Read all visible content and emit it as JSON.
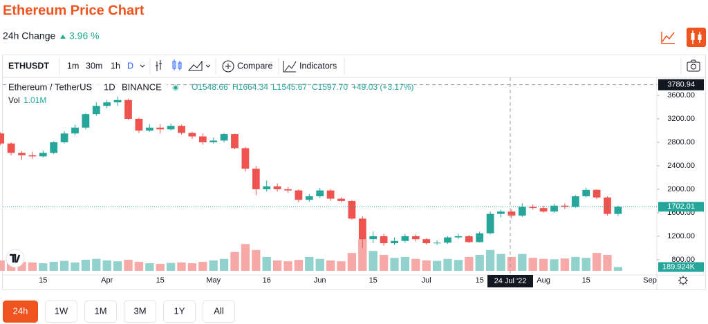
{
  "header": {
    "title": "Ethereum Price Chart",
    "change_label": "24h Change",
    "change_value": "3.96 %"
  },
  "toolbar": {
    "symbol": "ETHUSDT",
    "intervals": [
      "1m",
      "30m",
      "1h",
      "D"
    ],
    "compare": "Compare",
    "indicators": "Indicators"
  },
  "legend": {
    "name": "Ethereum / TetherUS",
    "interval": "1D",
    "exchange": "BINANCE",
    "open": "O1548.66",
    "high": "H1664.34",
    "low": "L1545.67",
    "close": "C1597.70",
    "change": "+49.03 (+3.17%)",
    "volume_label": "Vol",
    "volume_value": "1.01M"
  },
  "chart_data": {
    "type": "candlestick",
    "categories": [
      null,
      null,
      null,
      null,
      "15",
      null,
      null,
      null,
      null,
      null,
      "Apr",
      null,
      null,
      null,
      null,
      "15",
      null,
      null,
      null,
      null,
      "May",
      null,
      null,
      null,
      null,
      "16",
      null,
      null,
      null,
      null,
      "Jun",
      null,
      null,
      null,
      null,
      "15",
      null,
      null,
      null,
      null,
      "Jul",
      null,
      null,
      null,
      null,
      "15",
      null,
      null,
      null,
      null,
      null,
      "Aug",
      null,
      null,
      null,
      "15",
      null,
      null,
      null,
      null,
      null,
      "Sep"
    ],
    "open": [
      2950,
      2780,
      2620,
      2580,
      2560,
      2620,
      2800,
      2950,
      3050,
      3280,
      3420,
      3480,
      3520,
      3200,
      3000,
      3050,
      3020,
      3080,
      2960,
      2900,
      2800,
      2830,
      2940,
      2700,
      2350,
      2000,
      2050,
      2000,
      1980,
      1820,
      1880,
      1980,
      1840,
      1800,
      1500,
      1150,
      1200,
      1080,
      1120,
      1200,
      1150,
      1080,
      1090,
      1180,
      1200,
      1100,
      1250,
      1580,
      1620,
      1550,
      1700,
      1680,
      1620,
      1720,
      1700,
      1880,
      1990,
      1860,
      1580,
      null,
      null,
      null
    ],
    "high": [
      2970,
      2800,
      2650,
      2640,
      2660,
      2820,
      2990,
      3100,
      3300,
      3480,
      3520,
      3580,
      3540,
      3220,
      3110,
      3110,
      3120,
      3100,
      2980,
      2950,
      2880,
      2960,
      2950,
      2720,
      2400,
      2150,
      2100,
      2040,
      2000,
      1920,
      2020,
      2000,
      1860,
      1820,
      1540,
      1280,
      1240,
      1180,
      1240,
      1230,
      1170,
      1130,
      1200,
      1240,
      1220,
      1280,
      1620,
      1650,
      1660,
      1760,
      1740,
      1720,
      1750,
      1760,
      1900,
      2030,
      2000,
      1880,
      1720,
      null,
      null,
      null
    ],
    "low": [
      2750,
      2580,
      2500,
      2520,
      2540,
      2600,
      2780,
      2920,
      3020,
      3250,
      3380,
      3420,
      3180,
      2960,
      2980,
      2950,
      3000,
      2930,
      2860,
      2760,
      2780,
      2800,
      2680,
      2300,
      1900,
      1960,
      1960,
      1940,
      1780,
      1790,
      1850,
      1800,
      1780,
      1480,
      1000,
      1080,
      1040,
      1050,
      1090,
      1110,
      1060,
      1050,
      1070,
      1150,
      1080,
      1090,
      1230,
      1520,
      1500,
      1530,
      1650,
      1600,
      1600,
      1660,
      1680,
      1860,
      1830,
      1550,
      1545,
      null,
      null,
      null
    ],
    "close": [
      2780,
      2620,
      2580,
      2560,
      2620,
      2800,
      2950,
      3050,
      3280,
      3420,
      3480,
      3520,
      3200,
      3000,
      3050,
      3020,
      3080,
      2960,
      2900,
      2800,
      2830,
      2940,
      2700,
      2350,
      2000,
      2050,
      2000,
      1980,
      1820,
      1880,
      1980,
      1840,
      1800,
      1500,
      1150,
      1200,
      1080,
      1120,
      1200,
      1150,
      1080,
      1090,
      1180,
      1200,
      1100,
      1250,
      1580,
      1620,
      1550,
      1700,
      1680,
      1620,
      1720,
      1700,
      1880,
      1990,
      1860,
      1580,
      1702,
      null,
      null,
      null
    ],
    "volume": [
      520000,
      480000,
      450000,
      420000,
      380000,
      450000,
      500000,
      420000,
      560000,
      600000,
      520000,
      480000,
      560000,
      450000,
      380000,
      350000,
      400000,
      420000,
      380000,
      450000,
      520000,
      600000,
      950000,
      1350000,
      1050000,
      700000,
      520000,
      480000,
      550000,
      700000,
      600000,
      520000,
      480000,
      900000,
      1600000,
      1000000,
      800000,
      650000,
      700000,
      600000,
      520000,
      500000,
      600000,
      550000,
      700000,
      800000,
      1050000,
      850000,
      700000,
      850000,
      650000,
      600000,
      580000,
      620000,
      700000,
      650000,
      900000,
      800000,
      189924,
      null,
      null,
      null
    ],
    "volume_labels": [
      null,
      null,
      null,
      null,
      null,
      null,
      null,
      null,
      null,
      null,
      null,
      null,
      null,
      null,
      null,
      null,
      null,
      null,
      null,
      null,
      null,
      null,
      null,
      null,
      null,
      null,
      null,
      null,
      null,
      null,
      null,
      null,
      null,
      null,
      null,
      null,
      null,
      null,
      null,
      null,
      null,
      null,
      null,
      null,
      null,
      null,
      null,
      null,
      null,
      null,
      null,
      null,
      null,
      null,
      null,
      null,
      null,
      null,
      "189.924K",
      null,
      null,
      null
    ],
    "up_color": "#26a69a",
    "down_color": "#ef5350",
    "up_volume_color": "#92d2cc",
    "down_volume_color": "#f7a9a7",
    "ylim": [
      540,
      3906
    ],
    "yticks": [
      {
        "value": 800,
        "label": "800.00"
      },
      {
        "value": 1200,
        "label": "1200.00"
      },
      {
        "value": 1600,
        "label": "1600.00"
      },
      {
        "value": 2000,
        "label": "2000.00"
      },
      {
        "value": 2400,
        "label": "2400.00"
      },
      {
        "value": 2800,
        "label": "2800.00"
      },
      {
        "value": 3200,
        "label": "3200.00"
      },
      {
        "value": 3600,
        "label": "3600.00"
      }
    ],
    "grid": false,
    "last_price": 1702.01,
    "crosshair_price": 3780.94,
    "crosshair_date": "24 Jul '22"
  },
  "ranges": [
    "24h",
    "1W",
    "1M",
    "3M",
    "1Y",
    "All"
  ]
}
